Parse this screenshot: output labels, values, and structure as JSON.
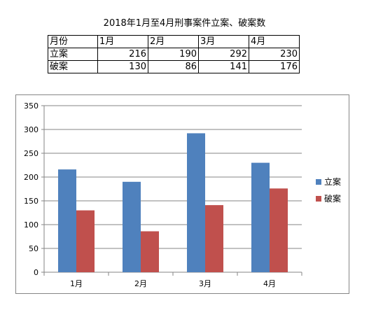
{
  "title": "2018年1月至4月刑事案件立案、破案数",
  "table": {
    "header": [
      "月份",
      "1月",
      "2月",
      "3月",
      "4月"
    ],
    "rows": [
      {
        "label": "立案",
        "values": [
          216,
          190,
          292,
          230
        ]
      },
      {
        "label": "破案",
        "values": [
          130,
          86,
          141,
          176
        ]
      }
    ]
  },
  "chart_data": {
    "type": "bar",
    "categories": [
      "1月",
      "2月",
      "3月",
      "4月"
    ],
    "series": [
      {
        "name": "立案",
        "values": [
          216,
          190,
          292,
          230
        ],
        "color": "#4F81BD"
      },
      {
        "name": "破案",
        "values": [
          130,
          86,
          141,
          176
        ],
        "color": "#C0504D"
      }
    ],
    "ylim": [
      0,
      350
    ],
    "yticks": [
      0,
      50,
      100,
      150,
      200,
      250,
      300,
      350
    ],
    "grid": true,
    "legend": "right"
  }
}
